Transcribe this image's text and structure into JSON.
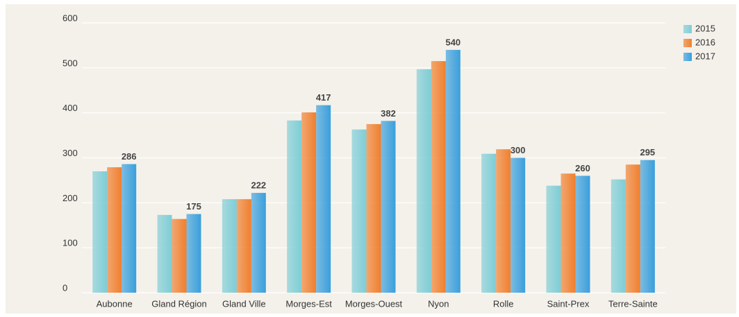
{
  "chart_data": {
    "type": "bar",
    "categories": [
      "Aubonne",
      "Gland Région",
      "Gland Ville",
      "Morges-Est",
      "Morges-Ouest",
      "Nyon",
      "Rolle",
      "Saint-Prex",
      "Terre-Sainte"
    ],
    "series": [
      {
        "name": "2015",
        "color": "#7ecdd6",
        "values": [
          270,
          173,
          208,
          383,
          363,
          497,
          309,
          238,
          252
        ]
      },
      {
        "name": "2016",
        "color": "#f07f2e",
        "values": [
          279,
          164,
          208,
          401,
          375,
          515,
          319,
          265,
          285
        ]
      },
      {
        "name": "2017",
        "color": "#3a9fdc",
        "values": [
          286,
          175,
          222,
          417,
          382,
          540,
          300,
          260,
          295
        ],
        "data_labels": true
      }
    ],
    "ylim": [
      0,
      600
    ],
    "yticks": [
      0,
      100,
      200,
      300,
      400,
      500,
      600
    ],
    "grid": true,
    "legend": "top-right"
  }
}
